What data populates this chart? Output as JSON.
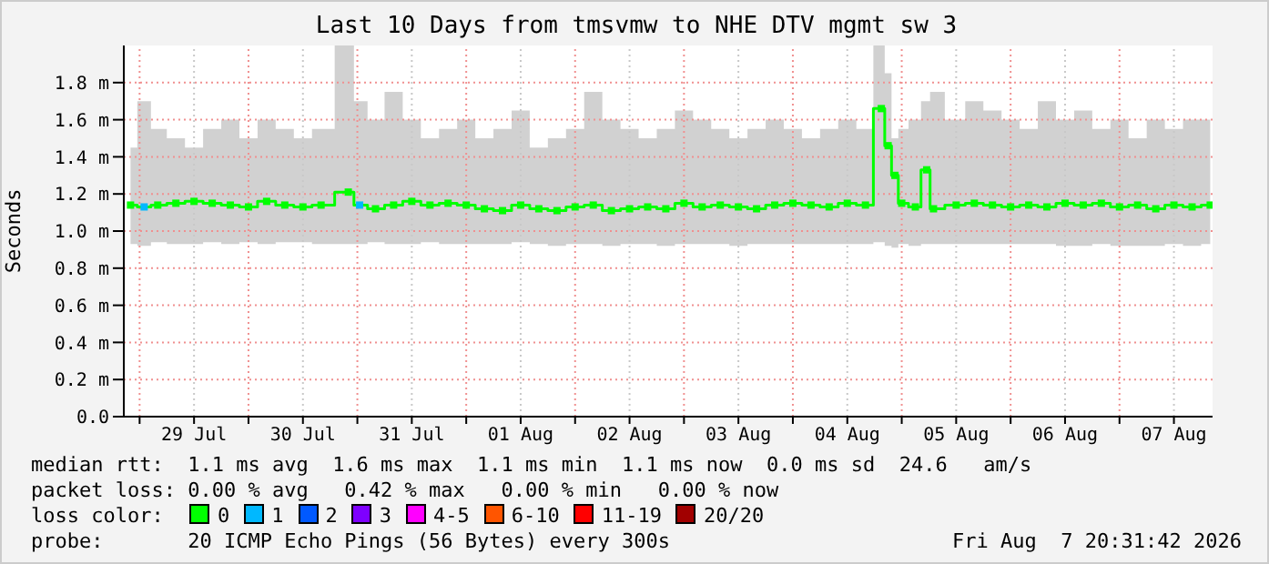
{
  "chart_data": {
    "type": "step",
    "title": "Last 10 Days from tmsvmw to NHE DTV mgmt sw 3",
    "ylabel": "Seconds",
    "xlim": [
      "2026-07-28T20:31",
      "2026-08-07T20:31"
    ],
    "xticks": [
      {
        "value": "2026-07-29T00:00",
        "label": null
      },
      {
        "value": "2026-07-29T12:00",
        "label": "29 Jul"
      },
      {
        "value": "2026-07-30T00:00",
        "label": null
      },
      {
        "value": "2026-07-30T12:00",
        "label": "30 Jul"
      },
      {
        "value": "2026-07-31T00:00",
        "label": null
      },
      {
        "value": "2026-07-31T12:00",
        "label": "31 Jul"
      },
      {
        "value": "2026-08-01T00:00",
        "label": null
      },
      {
        "value": "2026-08-01T12:00",
        "label": "01 Aug"
      },
      {
        "value": "2026-08-02T00:00",
        "label": null
      },
      {
        "value": "2026-08-02T12:00",
        "label": "02 Aug"
      },
      {
        "value": "2026-08-03T00:00",
        "label": null
      },
      {
        "value": "2026-08-03T12:00",
        "label": "03 Aug"
      },
      {
        "value": "2026-08-04T00:00",
        "label": null
      },
      {
        "value": "2026-08-04T12:00",
        "label": "04 Aug"
      },
      {
        "value": "2026-08-05T00:00",
        "label": null
      },
      {
        "value": "2026-08-05T12:00",
        "label": "05 Aug"
      },
      {
        "value": "2026-08-06T00:00",
        "label": null
      },
      {
        "value": "2026-08-06T12:00",
        "label": "06 Aug"
      },
      {
        "value": "2026-08-07T00:00",
        "label": null
      },
      {
        "value": "2026-08-07T12:00",
        "label": "07 Aug"
      }
    ],
    "ylim": [
      0,
      2.0
    ],
    "yticks": [
      {
        "value": 0,
        "label": "0.0"
      },
      {
        "value": 0.2,
        "label": "0.2 m"
      },
      {
        "value": 0.4,
        "label": "0.4 m"
      },
      {
        "value": 0.6,
        "label": "0.6 m"
      },
      {
        "value": 0.8,
        "label": "0.8 m"
      },
      {
        "value": 1.0,
        "label": "1.0 m"
      },
      {
        "value": 1.2,
        "label": "1.2 m"
      },
      {
        "value": 1.4,
        "label": "1.4 m"
      },
      {
        "value": 1.6,
        "label": "1.6 m"
      },
      {
        "value": 1.8,
        "label": "1.8 m"
      }
    ],
    "grid": true,
    "marker": "square",
    "x": [
      "2026-07-28T22:00",
      "2026-07-29T01:00",
      "2026-07-29T04:00",
      "2026-07-29T08:00",
      "2026-07-29T12:00",
      "2026-07-29T16:00",
      "2026-07-29T20:00",
      "2026-07-30T00:00",
      "2026-07-30T04:00",
      "2026-07-30T08:00",
      "2026-07-30T12:00",
      "2026-07-30T16:00",
      "2026-07-30T22:00",
      "2026-07-31T00:30",
      "2026-07-31T04:00",
      "2026-07-31T08:00",
      "2026-07-31T12:00",
      "2026-07-31T16:00",
      "2026-07-31T20:00",
      "2026-08-01T00:00",
      "2026-08-01T04:00",
      "2026-08-01T08:00",
      "2026-08-01T12:00",
      "2026-08-01T16:00",
      "2026-08-01T20:00",
      "2026-08-02T00:00",
      "2026-08-02T04:00",
      "2026-08-02T08:00",
      "2026-08-02T12:00",
      "2026-08-02T16:00",
      "2026-08-02T20:00",
      "2026-08-03T00:00",
      "2026-08-03T04:00",
      "2026-08-03T08:00",
      "2026-08-03T12:00",
      "2026-08-03T16:00",
      "2026-08-03T20:00",
      "2026-08-04T00:00",
      "2026-08-04T04:00",
      "2026-08-04T08:00",
      "2026-08-04T12:00",
      "2026-08-04T16:00",
      "2026-08-04T19:30",
      "2026-08-04T21:00",
      "2026-08-04T22:30",
      "2026-08-05T00:00",
      "2026-08-05T03:00",
      "2026-08-05T05:30",
      "2026-08-05T07:00",
      "2026-08-05T12:00",
      "2026-08-05T16:00",
      "2026-08-05T20:00",
      "2026-08-06T00:00",
      "2026-08-06T04:00",
      "2026-08-06T08:00",
      "2026-08-06T12:00",
      "2026-08-06T16:00",
      "2026-08-06T20:00",
      "2026-08-07T00:00",
      "2026-08-07T04:00",
      "2026-08-07T08:00",
      "2026-08-07T12:00",
      "2026-08-07T16:00",
      "2026-08-07T20:00"
    ],
    "series": [
      {
        "color": "#00ff00",
        "values": [
          1.14,
          1.13,
          1.14,
          1.15,
          1.16,
          1.15,
          1.14,
          1.13,
          1.16,
          1.14,
          1.13,
          1.14,
          1.21,
          1.14,
          1.12,
          1.14,
          1.16,
          1.14,
          1.15,
          1.14,
          1.12,
          1.11,
          1.14,
          1.12,
          1.11,
          1.13,
          1.14,
          1.11,
          1.12,
          1.13,
          1.12,
          1.15,
          1.13,
          1.14,
          1.13,
          1.12,
          1.14,
          1.15,
          1.14,
          1.13,
          1.15,
          1.14,
          1.66,
          1.46,
          1.3,
          1.15,
          1.13,
          1.33,
          1.12,
          1.14,
          1.15,
          1.14,
          1.13,
          1.14,
          1.13,
          1.15,
          1.14,
          1.15,
          1.13,
          1.14,
          1.12,
          1.14,
          1.13,
          1.14
        ],
        "colors": [
          "#00ff00",
          "#00b8ff",
          "#00ff00",
          "#00ff00",
          "#00ff00",
          "#00ff00",
          "#00ff00",
          "#00ff00",
          "#00ff00",
          "#00ff00",
          "#00ff00",
          "#00ff00",
          "#00ff00",
          "#00b8ff",
          "#00ff00",
          "#00ff00",
          "#00ff00",
          "#00ff00",
          "#00ff00",
          "#00ff00",
          "#00ff00",
          "#00ff00",
          "#00ff00",
          "#00ff00",
          "#00ff00",
          "#00ff00",
          "#00ff00",
          "#00ff00",
          "#00ff00",
          "#00ff00",
          "#00ff00",
          "#00ff00",
          "#00ff00",
          "#00ff00",
          "#00ff00",
          "#00ff00",
          "#00ff00",
          "#00ff00",
          "#00ff00",
          "#00ff00",
          "#00ff00",
          "#00ff00",
          "#00ff00",
          "#00ff00",
          "#00ff00",
          "#00ff00",
          "#00ff00",
          "#00ff00",
          "#00ff00",
          "#00ff00",
          "#00ff00",
          "#00ff00",
          "#00ff00",
          "#00ff00",
          "#00ff00",
          "#00ff00",
          "#00ff00",
          "#00ff00",
          "#00ff00",
          "#00ff00",
          "#00ff00",
          "#00ff00",
          "#00ff00",
          "#00ff00"
        ],
        "lower": [
          0.93,
          0.92,
          0.94,
          0.93,
          0.93,
          0.94,
          0.93,
          0.94,
          0.93,
          0.94,
          0.94,
          0.93,
          0.93,
          0.93,
          0.94,
          0.93,
          0.93,
          0.94,
          0.93,
          0.93,
          0.93,
          0.93,
          0.94,
          0.93,
          0.92,
          0.93,
          0.93,
          0.92,
          0.93,
          0.93,
          0.92,
          0.93,
          0.93,
          0.93,
          0.92,
          0.93,
          0.93,
          0.93,
          0.93,
          0.93,
          0.93,
          0.93,
          0.94,
          0.92,
          0.91,
          0.93,
          0.92,
          0.93,
          0.93,
          0.93,
          0.93,
          0.93,
          0.93,
          0.93,
          0.93,
          0.92,
          0.92,
          0.93,
          0.92,
          0.92,
          0.92,
          0.93,
          0.92,
          0.93
        ],
        "upper": [
          1.45,
          1.7,
          1.55,
          1.5,
          1.45,
          1.55,
          1.6,
          1.5,
          1.6,
          1.55,
          1.5,
          1.55,
          2.0,
          1.7,
          1.6,
          1.75,
          1.6,
          1.5,
          1.55,
          1.6,
          1.5,
          1.55,
          1.65,
          1.45,
          1.5,
          1.55,
          1.75,
          1.6,
          1.55,
          1.5,
          1.55,
          1.65,
          1.6,
          1.55,
          1.5,
          1.55,
          1.6,
          1.55,
          1.5,
          1.55,
          1.6,
          1.55,
          2.0,
          1.85,
          1.5,
          1.55,
          1.6,
          1.7,
          1.75,
          1.6,
          1.7,
          1.65,
          1.6,
          1.55,
          1.7,
          1.6,
          1.65,
          1.55,
          1.6,
          1.5,
          1.6,
          1.55,
          1.6,
          1.6
        ]
      }
    ],
    "annotations": [
      "median rtt:  1.1 ms avg  1.6 ms max  1.1 ms min  1.1 ms now  0.0 ms sd  24.6   am/s",
      "packet loss: 0.00 % avg   0.42 % max   0.00 % min   0.00 % now",
      "loss color:",
      "0",
      "1",
      "2",
      "3",
      "4-5",
      "6-10",
      "11-19",
      "20/20",
      "probe:       20 ICMP Echo Pings (56 Bytes) every 300s",
      "Fri Aug  7 20:31:42 2026"
    ]
  }
}
